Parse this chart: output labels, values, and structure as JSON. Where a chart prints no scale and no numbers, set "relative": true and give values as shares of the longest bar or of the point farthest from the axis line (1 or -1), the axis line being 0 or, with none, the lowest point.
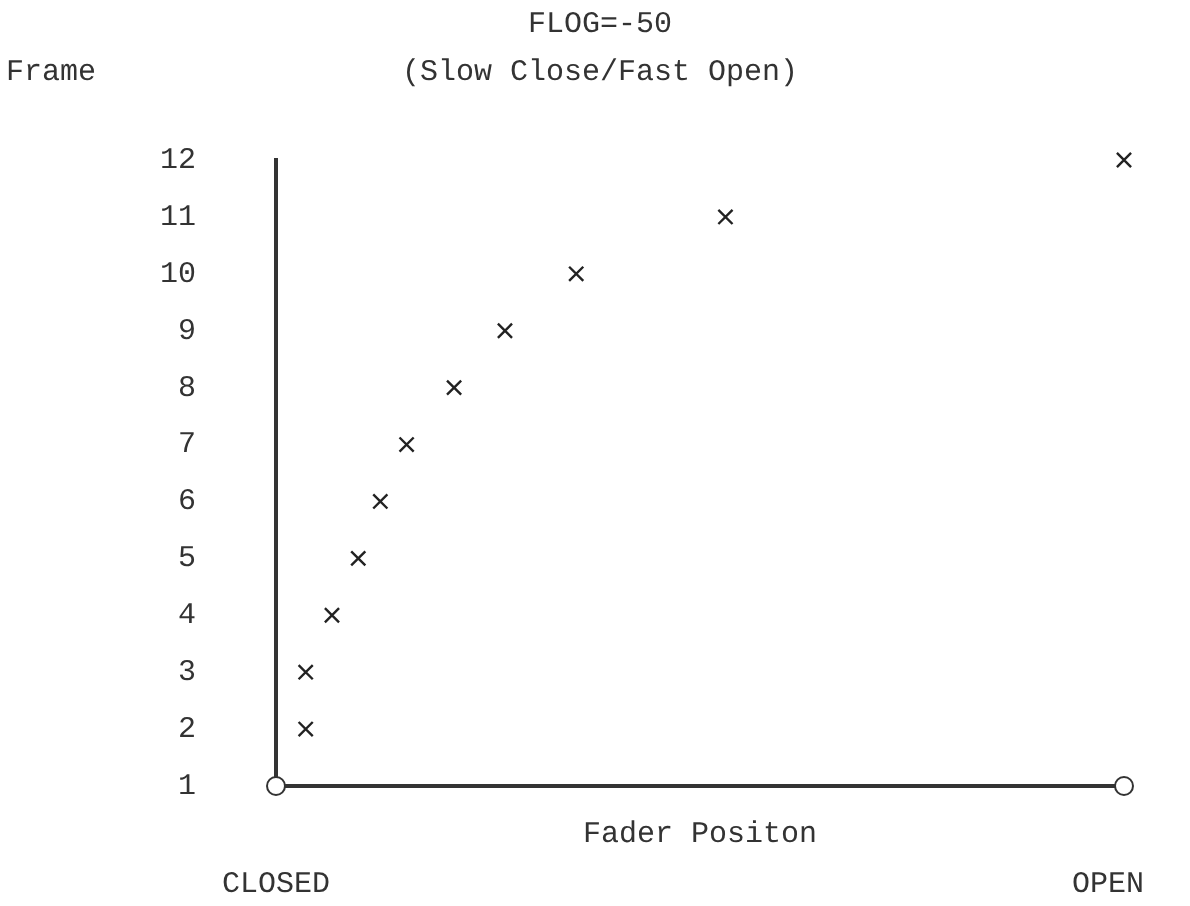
{
  "chart_data": {
    "type": "scatter",
    "orientation": "horizontal",
    "relative": true,
    "title": "FLOG=-50",
    "subtitle": "(Slow Close/Fast Open)",
    "ylabel": "Frame",
    "xlabel": "Fader Positon",
    "annotations": [
      "CLOSED",
      "OPEN"
    ],
    "categories": [
      "12",
      "11",
      "10",
      "9",
      "8",
      "7",
      "6",
      "5",
      "4",
      "3",
      "2",
      "1"
    ],
    "values": [
      1.0,
      0.53,
      0.354,
      0.27,
      0.21,
      0.154,
      0.123,
      0.097,
      0.066,
      0.035,
      0.035,
      null
    ],
    "color": "#222222",
    "marker": "cross",
    "grid": false,
    "legend": false
  }
}
